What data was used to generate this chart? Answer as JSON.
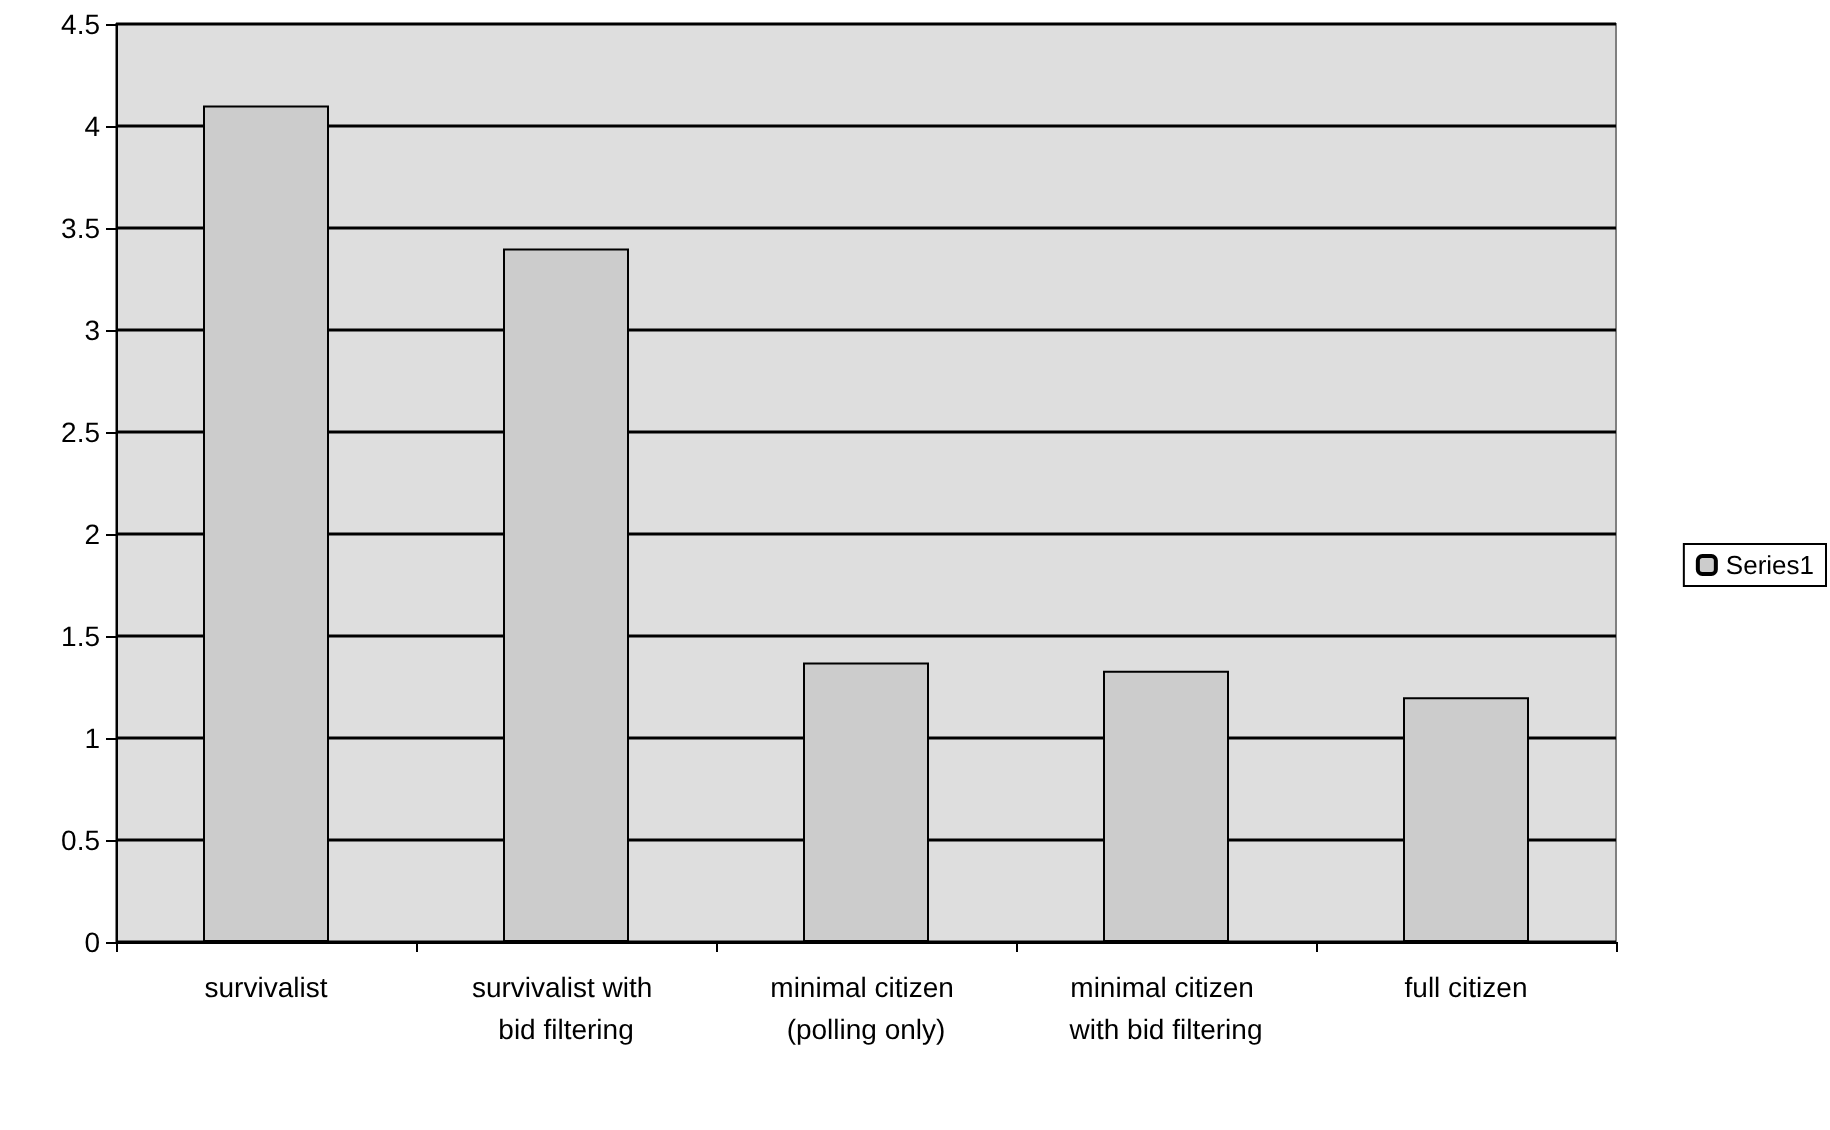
{
  "chart_data": {
    "type": "bar",
    "categories": [
      "survivalist",
      "survivalist with bid filtering",
      "minimal citizen (polling only)",
      "minimal citizen with bid filtering",
      "full citizen"
    ],
    "series": [
      {
        "name": "Series1",
        "color": "#cccccc",
        "values": [
          4.1,
          3.4,
          1.37,
          1.33,
          1.2
        ]
      }
    ],
    "ylim": [
      0,
      4.5
    ],
    "yticks": [
      0,
      0.5,
      1,
      1.5,
      2,
      2.5,
      3,
      3.5,
      4,
      4.5
    ],
    "grid": "y",
    "legend": "right"
  }
}
